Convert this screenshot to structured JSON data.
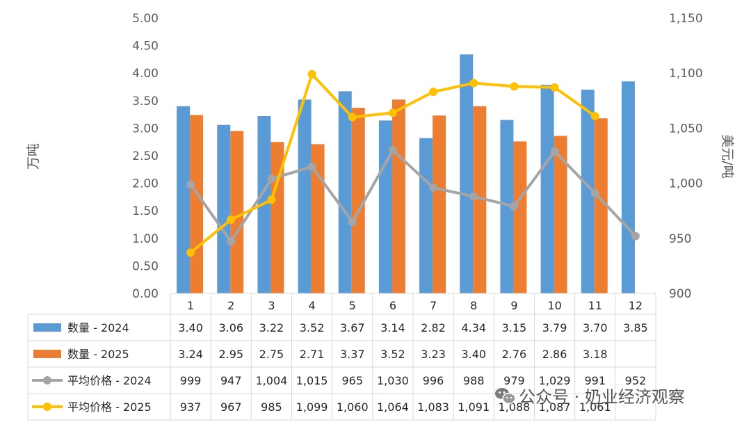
{
  "chart_data": {
    "type": "bar+line",
    "categories": [
      "1",
      "2",
      "3",
      "4",
      "5",
      "6",
      "7",
      "8",
      "9",
      "10",
      "11",
      "12"
    ],
    "series": [
      {
        "name": "数量 - 2024",
        "kind": "bar",
        "axis": "left",
        "color": "#5B9BD5",
        "values": [
          3.4,
          3.06,
          3.22,
          3.52,
          3.67,
          3.14,
          2.82,
          4.34,
          3.15,
          3.79,
          3.7,
          3.85
        ],
        "labels": [
          "3.40",
          "3.06",
          "3.22",
          "3.52",
          "3.67",
          "3.14",
          "2.82",
          "4.34",
          "3.15",
          "3.79",
          "3.70",
          "3.85"
        ]
      },
      {
        "name": "数量 - 2025",
        "kind": "bar",
        "axis": "left",
        "color": "#ED7D31",
        "values": [
          3.24,
          2.95,
          2.75,
          2.71,
          3.37,
          3.52,
          3.23,
          3.4,
          2.76,
          2.86,
          3.18,
          null
        ],
        "labels": [
          "3.24",
          "2.95",
          "2.75",
          "2.71",
          "3.37",
          "3.52",
          "3.23",
          "3.40",
          "2.76",
          "2.86",
          "3.18",
          ""
        ]
      },
      {
        "name": "平均价格 - 2024",
        "kind": "line",
        "axis": "right",
        "color": "#A5A5A5",
        "values": [
          999,
          947,
          1004,
          1015,
          965,
          1030,
          996,
          988,
          979,
          1029,
          991,
          952
        ],
        "labels": [
          "999",
          "947",
          "1,004",
          "1,015",
          "965",
          "1,030",
          "996",
          "988",
          "979",
          "1,029",
          "991",
          "952"
        ]
      },
      {
        "name": "平均价格 - 2025",
        "kind": "line",
        "axis": "right",
        "color": "#FFC000",
        "values": [
          937,
          967,
          985,
          1099,
          1060,
          1064,
          1083,
          1091,
          1088,
          1087,
          1061,
          null
        ],
        "labels": [
          "937",
          "967",
          "985",
          "1,099",
          "1,060",
          "1,064",
          "1,083",
          "1,091",
          "1,088",
          "1,087",
          "1,061",
          ""
        ]
      }
    ],
    "ylabel_left": "万吨",
    "ylabel_right": "美元/吨",
    "ylim_left": [
      0,
      5
    ],
    "ylim_right": [
      900,
      1150
    ],
    "yticks_left": [
      "0.00",
      "0.50",
      "1.00",
      "1.50",
      "2.00",
      "2.50",
      "3.00",
      "3.50",
      "4.00",
      "4.50",
      "5.00"
    ],
    "yticks_right": [
      "900",
      "950",
      "1,000",
      "1,050",
      "1,100",
      "1,150"
    ],
    "grid": false,
    "legend": "data-table"
  },
  "watermark": {
    "text": "公众号 · 奶业经济观察",
    "icon": "wechat-icon"
  }
}
